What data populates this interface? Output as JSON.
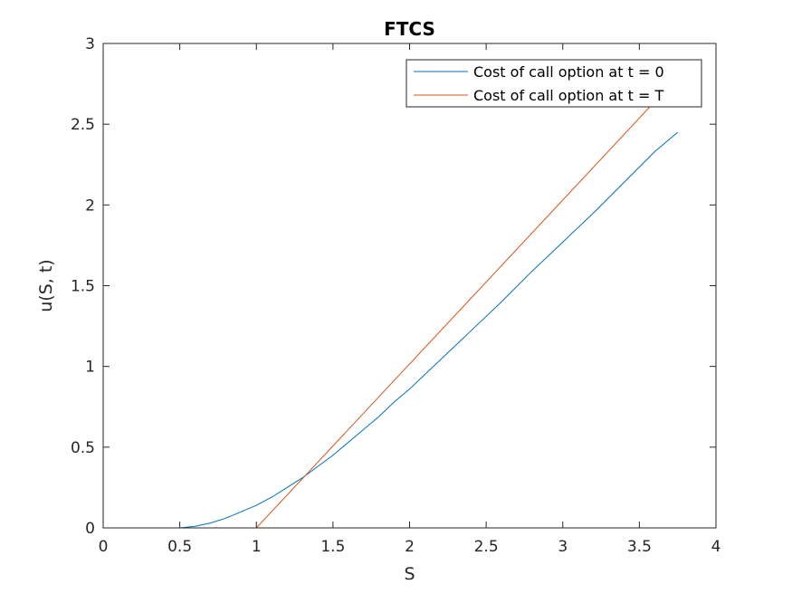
{
  "chart_data": {
    "type": "line",
    "title": "FTCS",
    "xlabel": "S",
    "ylabel": "u(S, t)",
    "xlim": [
      0,
      4
    ],
    "ylim": [
      0,
      3
    ],
    "xticks": [
      0,
      0.5,
      1,
      1.5,
      2,
      2.5,
      3,
      3.5,
      4
    ],
    "xtick_labels": [
      "0",
      "0.5",
      "1",
      "1.5",
      "2",
      "2.5",
      "3",
      "3.5",
      "4"
    ],
    "yticks": [
      0,
      0.5,
      1,
      1.5,
      2,
      2.5,
      3
    ],
    "ytick_labels": [
      "0",
      "0.5",
      "1",
      "1.5",
      "2",
      "2.5",
      "3"
    ],
    "grid": false,
    "legend_position": "top-right",
    "series": [
      {
        "name": "Cost of call option at t = 0",
        "color": "#0072BD",
        "x": [
          0,
          0.5,
          0.6,
          0.7,
          0.8,
          0.9,
          1.0,
          1.1,
          1.2,
          1.3,
          1.4,
          1.5,
          1.6,
          1.7,
          1.8,
          1.9,
          2.0,
          2.2,
          2.4,
          2.6,
          2.8,
          3.0,
          3.2,
          3.4,
          3.6,
          3.75
        ],
        "y": [
          0,
          0,
          0.01,
          0.03,
          0.06,
          0.1,
          0.14,
          0.19,
          0.25,
          0.31,
          0.38,
          0.45,
          0.53,
          0.61,
          0.69,
          0.78,
          0.86,
          1.04,
          1.22,
          1.4,
          1.59,
          1.77,
          1.95,
          2.14,
          2.33,
          2.45
        ]
      },
      {
        "name": "Cost of call option at t = T",
        "color": "#D95319",
        "x": [
          0,
          1,
          3.63
        ],
        "y": [
          0,
          0,
          2.67
        ]
      }
    ]
  }
}
